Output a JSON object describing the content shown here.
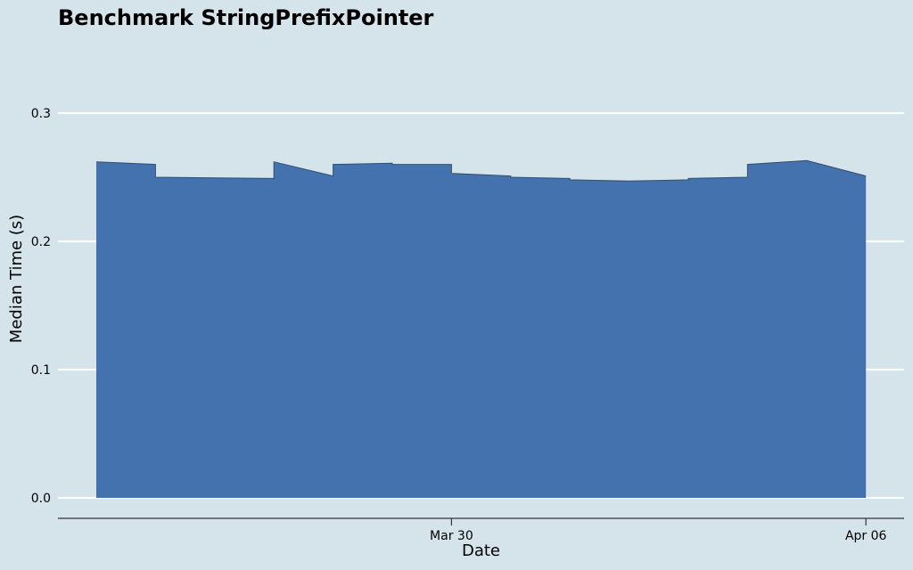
{
  "chart_data": {
    "type": "area",
    "title": "Benchmark StringPrefixPointer",
    "xlabel": "Date",
    "ylabel": "Median Time (s)",
    "ylim": [
      0,
      0.3
    ],
    "yticks": [
      0.0,
      0.1,
      0.2,
      0.3
    ],
    "ytick_labels": [
      "0.0",
      "0.1",
      "0.2",
      "0.3"
    ],
    "xticks": [
      {
        "day": 6,
        "label": "Mar 30"
      },
      {
        "day": 13,
        "label": "Apr 06"
      }
    ],
    "x_range_days": [
      0,
      14
    ],
    "date_origin": "Mar 24",
    "series": [
      {
        "name": "StringPrefixPointer",
        "color": "#4472ae",
        "edge_color": "#2f4f6f",
        "x_days": [
          0.0,
          1.0,
          1.0,
          3.0,
          3.0,
          4.0,
          4.0,
          5.0,
          5.0,
          6.0,
          6.0,
          7.0,
          7.0,
          8.0,
          8.0,
          9.0,
          9.0,
          10.0,
          10.0,
          11.0,
          11.0,
          12.0,
          12.0,
          13.0
        ],
        "values": [
          0.262,
          0.26,
          0.25,
          0.249,
          0.262,
          0.251,
          0.26,
          0.261,
          0.26,
          0.26,
          0.253,
          0.251,
          0.25,
          0.249,
          0.248,
          0.247,
          0.247,
          0.248,
          0.249,
          0.25,
          0.26,
          0.263,
          0.263,
          0.251
        ]
      }
    ]
  }
}
